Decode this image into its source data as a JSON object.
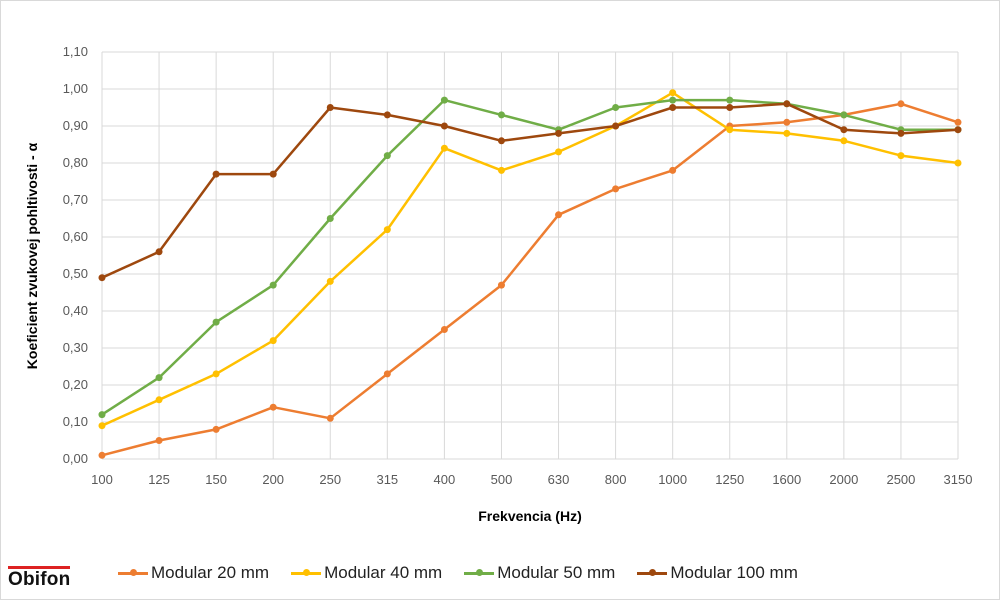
{
  "chart_data": {
    "type": "line",
    "title": "",
    "xlabel": "Frekvencia (Hz)",
    "ylabel": "Koeficient zvukovej pohltivosti - α",
    "categories": [
      "100",
      "125",
      "150",
      "200",
      "250",
      "315",
      "400",
      "500",
      "630",
      "800",
      "1000",
      "1250",
      "1600",
      "2000",
      "2500",
      "3150"
    ],
    "ylim": [
      0,
      1.1
    ],
    "yticks": [
      "0,00",
      "0,10",
      "0,20",
      "0,30",
      "0,40",
      "0,50",
      "0,60",
      "0,70",
      "0,80",
      "0,90",
      "1,00",
      "1,10"
    ],
    "grid": true,
    "legend_position": "bottom",
    "series": [
      {
        "name": "Modular 20 mm",
        "color": "#ED7D31",
        "values": [
          0.01,
          0.05,
          0.08,
          0.14,
          0.11,
          0.23,
          0.35,
          0.47,
          0.66,
          0.73,
          0.78,
          0.9,
          0.91,
          0.93,
          0.96,
          0.91
        ]
      },
      {
        "name": "Modular 40 mm",
        "color": "#FFC000",
        "values": [
          0.09,
          0.16,
          0.23,
          0.32,
          0.48,
          0.62,
          0.84,
          0.78,
          0.83,
          0.9,
          0.99,
          0.89,
          0.88,
          0.86,
          0.82,
          0.8
        ]
      },
      {
        "name": "Modular 50 mm",
        "color": "#70AD47",
        "values": [
          0.12,
          0.22,
          0.37,
          0.47,
          0.65,
          0.82,
          0.97,
          0.93,
          0.89,
          0.95,
          0.97,
          0.97,
          0.96,
          0.93,
          0.89,
          0.89
        ]
      },
      {
        "name": "Modular 100 mm",
        "color": "#9E480E",
        "values": [
          0.49,
          0.56,
          0.77,
          0.77,
          0.95,
          0.93,
          0.9,
          0.86,
          0.88,
          0.9,
          0.95,
          0.95,
          0.96,
          0.89,
          0.88,
          0.89
        ]
      }
    ]
  },
  "logo": "Obifon"
}
